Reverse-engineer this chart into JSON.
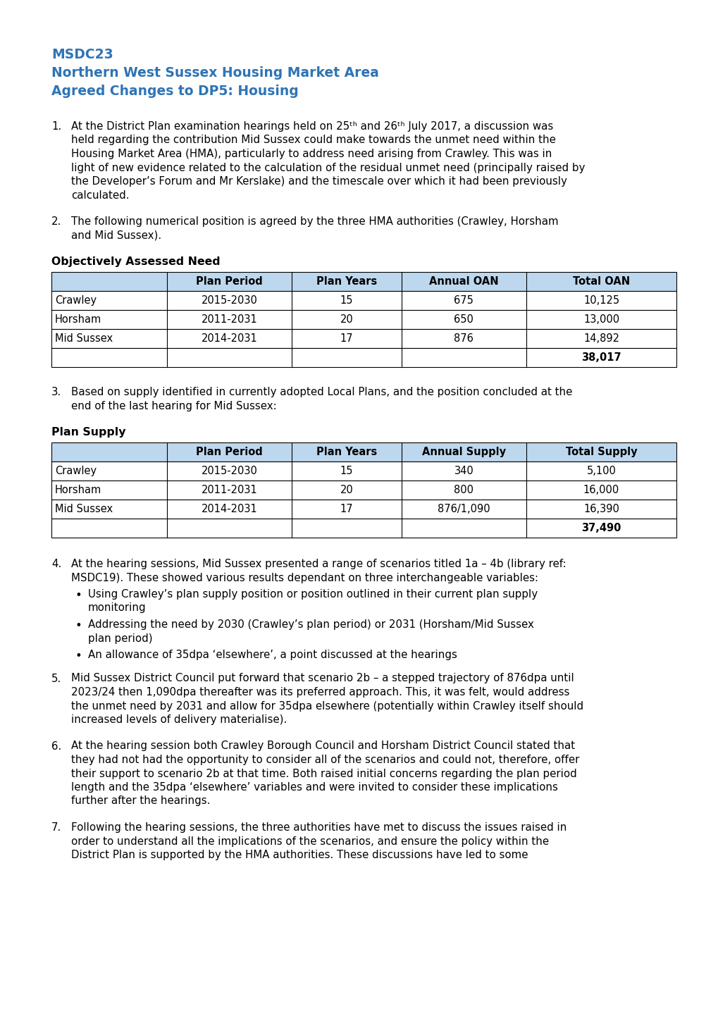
{
  "title_line1": "MSDC23",
  "title_line2": "Northern West Sussex Housing Market Area",
  "title_line3": "Agreed Changes to DP5: Housing",
  "title_color": "#2E74B5",
  "background_color": "#FFFFFF",
  "table1_title": "Objectively Assessed Need",
  "table1_headers": [
    "",
    "Plan Period",
    "Plan Years",
    "Annual OAN",
    "Total OAN"
  ],
  "table1_rows": [
    [
      "Crawley",
      "2015-2030",
      "15",
      "675",
      "10,125"
    ],
    [
      "Horsham",
      "2011-2031",
      "20",
      "650",
      "13,000"
    ],
    [
      "Mid Sussex",
      "2014-2031",
      "17",
      "876",
      "14,892"
    ]
  ],
  "table1_total": "38,017",
  "table2_title": "Plan Supply",
  "table2_headers": [
    "",
    "Plan Period",
    "Plan Years",
    "Annual Supply",
    "Total Supply"
  ],
  "table2_rows": [
    [
      "Crawley",
      "2015-2030",
      "15",
      "340",
      "5,100"
    ],
    [
      "Horsham",
      "2011-2031",
      "20",
      "800",
      "16,000"
    ],
    [
      "Mid Sussex",
      "2014-2031",
      "17",
      "876/1,090",
      "16,390"
    ]
  ],
  "table2_total": "37,490",
  "header_bg": "#BDD7EE",
  "text_color": "#000000",
  "para1_lines": [
    "At the District Plan examination hearings held on 25ᵗʰ and 26ᵗʰ July 2017, a discussion was",
    "held regarding the contribution Mid Sussex could make towards the unmet need within the",
    "Housing Market Area (HMA), particularly to address need arising from Crawley. This was in",
    "light of new evidence related to the calculation of the residual unmet need (principally raised by",
    "the Developer’s Forum and Mr Kerslake) and the timescale over which it had been previously",
    "calculated."
  ],
  "para2_lines": [
    "The following numerical position is agreed by the three HMA authorities (Crawley, Horsham",
    "and Mid Sussex)."
  ],
  "para3_lines": [
    "Based on supply identified in currently adopted Local Plans, and the position concluded at the",
    "end of the last hearing for Mid Sussex:"
  ],
  "para4_intro_lines": [
    "At the hearing sessions, Mid Sussex presented a range of scenarios titled 1a – 4b (library ref:",
    "MSDC19). These showed various results dependant on three interchangeable variables:"
  ],
  "para4_bullets": [
    [
      "Using Crawley’s plan supply position or position outlined in their current plan supply",
      "monitoring"
    ],
    [
      "Addressing the need by 2030 (Crawley’s plan period) or 2031 (Horsham/Mid Sussex",
      "plan period)"
    ],
    [
      "An allowance of 35dpa ‘elsewhere’, a point discussed at the hearings"
    ]
  ],
  "para5_lines": [
    "Mid Sussex District Council put forward that scenario 2b – a stepped trajectory of 876dpa until",
    "2023/24 then 1,090dpa thereafter was its preferred approach. This, it was felt, would address",
    "the unmet need by 2031 and allow for 35dpa elsewhere (potentially within Crawley itself should",
    "increased levels of delivery materialise)."
  ],
  "para6_lines": [
    "At the hearing session both Crawley Borough Council and Horsham District Council stated that",
    "they had not had the opportunity to consider all of the scenarios and could not, therefore, offer",
    "their support to scenario 2b at that time. Both raised initial concerns regarding the plan period",
    "length and the 35dpa ‘elsewhere’ variables and were invited to consider these implications",
    "further after the hearings."
  ],
  "para7_lines": [
    "Following the hearing sessions, the three authorities have met to discuss the issues raised in",
    "order to understand all the implications of the scenarios, and ensure the policy within the",
    "District Plan is supported by the HMA authorities. These discussions have led to some"
  ]
}
